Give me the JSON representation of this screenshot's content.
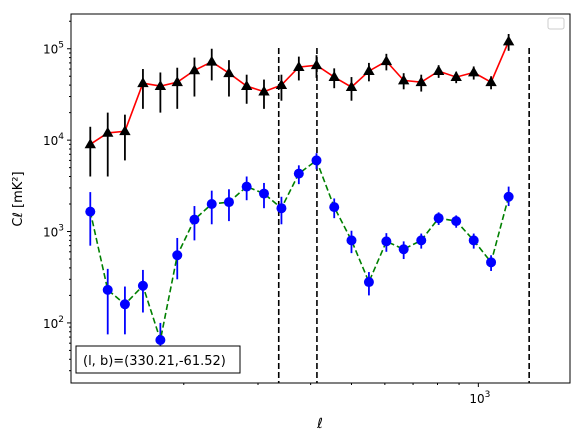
{
  "chart_data": {
    "type": "scatter",
    "xlabel": "ℓ",
    "ylabel": "Cℓ  [mK²]",
    "x_scale": "log",
    "y_scale": "log",
    "xlim": [
      108,
      1650
    ],
    "ylim": [
      22,
      240000
    ],
    "x_ticks": [
      {
        "value": 1000,
        "label": "10",
        "exp": "3"
      }
    ],
    "y_ticks": [
      {
        "value": 100,
        "label": "10",
        "exp": "2"
      },
      {
        "value": 1000,
        "label": "10",
        "exp": "3"
      },
      {
        "value": 10000,
        "label": "10",
        "exp": "4"
      },
      {
        "value": 100000,
        "label": "10",
        "exp": "5"
      }
    ],
    "grid": false,
    "legend": "top-right",
    "annotation": "(l, b)=(330.21,-61.52)",
    "vlines": [
      336,
      414,
      1320
    ],
    "series": [
      {
        "marker": "triangle",
        "marker_color": "#000000",
        "line_color": "#ff0000",
        "line_style": "solid",
        "points": [
          {
            "x": 120,
            "y": 9000,
            "lo": 4000,
            "hi": 14000
          },
          {
            "x": 132,
            "y": 12000,
            "lo": 4000,
            "hi": 20000
          },
          {
            "x": 145,
            "y": 12500,
            "lo": 6000,
            "hi": 19000
          },
          {
            "x": 160,
            "y": 42000,
            "lo": 22000,
            "hi": 60000
          },
          {
            "x": 176,
            "y": 39000,
            "lo": 20000,
            "hi": 55000
          },
          {
            "x": 193,
            "y": 43000,
            "lo": 22000,
            "hi": 62000
          },
          {
            "x": 212,
            "y": 58000,
            "lo": 30000,
            "hi": 80000
          },
          {
            "x": 233,
            "y": 72000,
            "lo": 45000,
            "hi": 100000
          },
          {
            "x": 256,
            "y": 54000,
            "lo": 30000,
            "hi": 75000
          },
          {
            "x": 282,
            "y": 39000,
            "lo": 25000,
            "hi": 52000
          },
          {
            "x": 310,
            "y": 34000,
            "lo": 22000,
            "hi": 46000
          },
          {
            "x": 341,
            "y": 40000,
            "lo": 27000,
            "hi": 52000
          },
          {
            "x": 375,
            "y": 63000,
            "lo": 45000,
            "hi": 82000
          },
          {
            "x": 413,
            "y": 66000,
            "lo": 48000,
            "hi": 85000
          },
          {
            "x": 455,
            "y": 49000,
            "lo": 37000,
            "hi": 61000
          },
          {
            "x": 500,
            "y": 38000,
            "lo": 27000,
            "hi": 49000
          },
          {
            "x": 550,
            "y": 57000,
            "lo": 44000,
            "hi": 70000
          },
          {
            "x": 605,
            "y": 73000,
            "lo": 58000,
            "hi": 88000
          },
          {
            "x": 665,
            "y": 45000,
            "lo": 36000,
            "hi": 54000
          },
          {
            "x": 732,
            "y": 43000,
            "lo": 34000,
            "hi": 52000
          },
          {
            "x": 805,
            "y": 57000,
            "lo": 48000,
            "hi": 66000
          },
          {
            "x": 886,
            "y": 49000,
            "lo": 42000,
            "hi": 56000
          },
          {
            "x": 975,
            "y": 55000,
            "lo": 46000,
            "hi": 64000
          },
          {
            "x": 1072,
            "y": 43000,
            "lo": 36000,
            "hi": 50000
          },
          {
            "x": 1180,
            "y": 120000,
            "lo": 95000,
            "hi": 145000
          }
        ]
      },
      {
        "marker": "circle",
        "marker_color": "#0000ff",
        "line_color": "#008000",
        "line_style": "dashed",
        "points": [
          {
            "x": 120,
            "y": 1650,
            "lo": 700,
            "hi": 2700
          },
          {
            "x": 132,
            "y": 230,
            "lo": 75,
            "hi": 390
          },
          {
            "x": 145,
            "y": 160,
            "lo": 75,
            "hi": 250
          },
          {
            "x": 160,
            "y": 255,
            "lo": 130,
            "hi": 380
          },
          {
            "x": 176,
            "y": 65,
            "lo": 30,
            "hi": 100
          },
          {
            "x": 193,
            "y": 550,
            "lo": 300,
            "hi": 850
          },
          {
            "x": 212,
            "y": 1350,
            "lo": 800,
            "hi": 1900
          },
          {
            "x": 233,
            "y": 2000,
            "lo": 1200,
            "hi": 2800
          },
          {
            "x": 256,
            "y": 2100,
            "lo": 1300,
            "hi": 2900
          },
          {
            "x": 282,
            "y": 3100,
            "lo": 2200,
            "hi": 4000
          },
          {
            "x": 310,
            "y": 2600,
            "lo": 1800,
            "hi": 3400
          },
          {
            "x": 341,
            "y": 1800,
            "lo": 1200,
            "hi": 2400
          },
          {
            "x": 375,
            "y": 4300,
            "lo": 3300,
            "hi": 5300
          },
          {
            "x": 413,
            "y": 6000,
            "lo": 4800,
            "hi": 7200
          },
          {
            "x": 455,
            "y": 1850,
            "lo": 1400,
            "hi": 2300
          },
          {
            "x": 500,
            "y": 800,
            "lo": 580,
            "hi": 1020
          },
          {
            "x": 550,
            "y": 280,
            "lo": 200,
            "hi": 360
          },
          {
            "x": 605,
            "y": 780,
            "lo": 600,
            "hi": 960
          },
          {
            "x": 665,
            "y": 640,
            "lo": 500,
            "hi": 780
          },
          {
            "x": 732,
            "y": 800,
            "lo": 650,
            "hi": 950
          },
          {
            "x": 805,
            "y": 1400,
            "lo": 1180,
            "hi": 1620
          },
          {
            "x": 886,
            "y": 1300,
            "lo": 1100,
            "hi": 1500
          },
          {
            "x": 975,
            "y": 800,
            "lo": 650,
            "hi": 950
          },
          {
            "x": 1072,
            "y": 460,
            "lo": 370,
            "hi": 550
          },
          {
            "x": 1180,
            "y": 2400,
            "lo": 1900,
            "hi": 3100
          }
        ]
      }
    ]
  }
}
